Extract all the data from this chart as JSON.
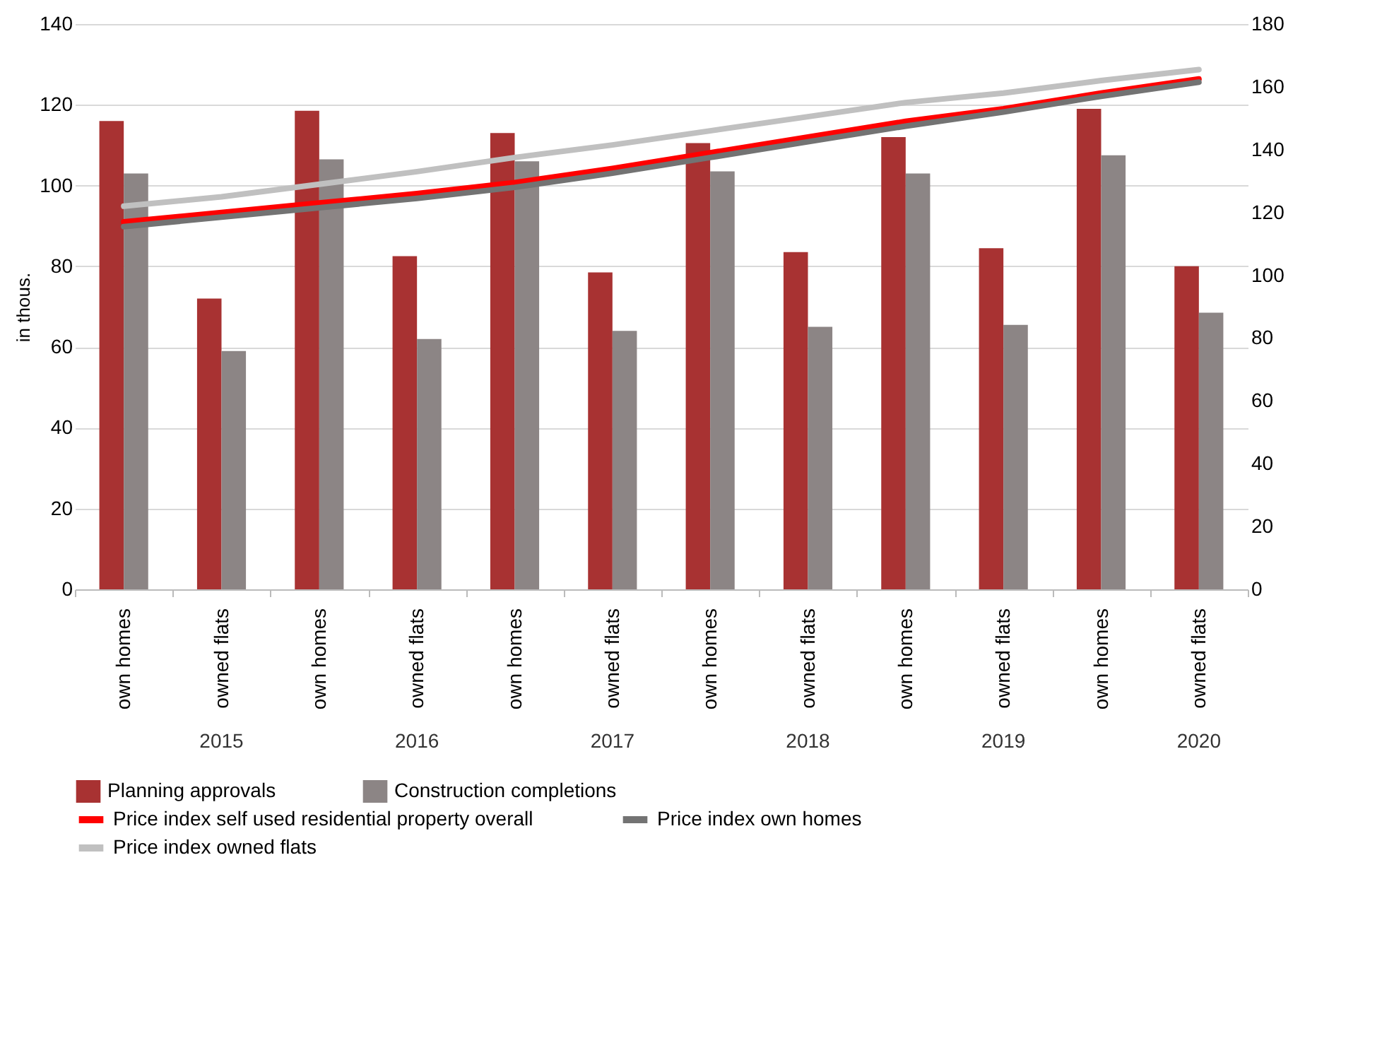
{
  "chart_data": {
    "type": "bar",
    "ylabel": "in thous.",
    "categories": [
      "own homes",
      "owned flats",
      "own homes",
      "owned flats",
      "own homes",
      "owned flats",
      "own homes",
      "owned flats",
      "own homes",
      "owned flats",
      "own homes",
      "owned flats"
    ],
    "annotations": [
      "2015",
      "2016",
      "2017",
      "2018",
      "2019",
      "2020"
    ],
    "series": [
      {
        "name": "Planning approvals",
        "color": "#a83232",
        "values": [
          116,
          72,
          118.5,
          82.5,
          113,
          78.5,
          110.5,
          83.5,
          112,
          84.5,
          119,
          80
        ]
      },
      {
        "name": "Construction completions",
        "color": "#8c8585",
        "values": [
          103,
          59,
          106.5,
          62,
          106,
          64,
          103.5,
          65,
          103,
          65.5,
          107.5,
          68.5
        ]
      },
      {
        "name": "Price index self used residential property overall",
        "color": "#ff0000",
        "type": "line",
        "axis": "y2",
        "values": [
          117,
          120,
          123,
          126,
          129.5,
          134,
          139,
          144,
          149,
          153,
          158,
          162.5
        ]
      },
      {
        "name": "Price index own homes",
        "color": "#737373",
        "type": "line",
        "axis": "y2",
        "values": [
          115.5,
          118.5,
          121.5,
          124.5,
          128,
          132.5,
          137.5,
          142.5,
          147.5,
          152,
          157,
          161.5
        ]
      },
      {
        "name": "Price index owned flats",
        "color": "#c0c0c0",
        "type": "line",
        "axis": "y2",
        "values": [
          122,
          125,
          129,
          133,
          137.5,
          141.5,
          146,
          150.5,
          155,
          158,
          162,
          165.5
        ]
      }
    ],
    "ylim": [
      0,
      140
    ],
    "yticks": [
      0,
      20,
      40,
      60,
      80,
      100,
      120,
      140
    ],
    "y2lim": [
      0,
      180
    ],
    "y2ticks": [
      0,
      20,
      40,
      60,
      80,
      100,
      120,
      140,
      160,
      180
    ],
    "grid": "y",
    "legend": "bottom"
  }
}
